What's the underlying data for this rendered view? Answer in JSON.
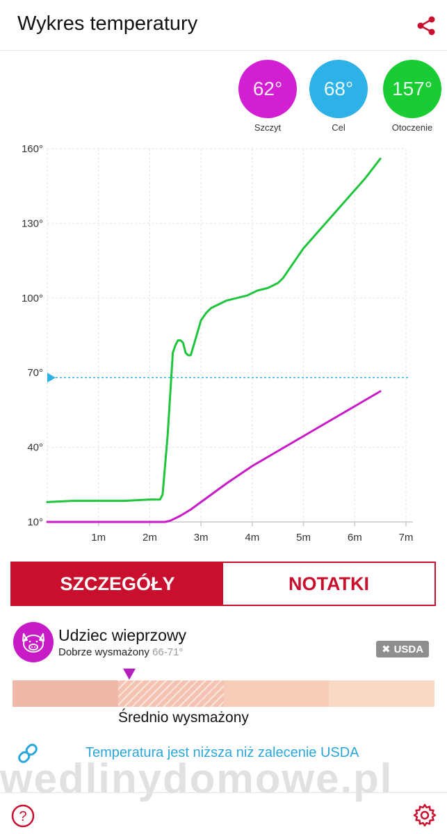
{
  "header": {
    "title": "Wykres temperatury",
    "share_icon": "share-icon"
  },
  "gauges": [
    {
      "value": "62°",
      "label": "Szczyt",
      "color": "#d21fd2"
    },
    {
      "value": "68°",
      "label": "Cel",
      "color": "#2db1e6"
    },
    {
      "value": "157°",
      "label": "Otoczenie",
      "color": "#19cc33"
    }
  ],
  "chart_data": {
    "type": "line",
    "x_unit": "minutes",
    "xlim": [
      0,
      7
    ],
    "ylim": [
      10,
      160
    ],
    "x_tick_labels": [
      "1m",
      "2m",
      "3m",
      "4m",
      "5m",
      "6m",
      "7m"
    ],
    "y_tick_labels": [
      "10°",
      "40°",
      "70°",
      "100°",
      "130°",
      "160°"
    ],
    "grid": true,
    "target_line": {
      "value": 68,
      "color": "#2db1e6"
    },
    "series": [
      {
        "color": "#1ec53c",
        "x": [
          0,
          0.5,
          1,
          1.5,
          2,
          2.2,
          2.25,
          2.35,
          2.45,
          2.5,
          2.55,
          2.6,
          2.65,
          2.7,
          2.75,
          2.8,
          2.9,
          3.0,
          3.1,
          3.2,
          3.4,
          3.5,
          3.7,
          3.9,
          4.1,
          4.3,
          4.5,
          4.6,
          4.8,
          5.0,
          5.3,
          5.6,
          5.9,
          6.2,
          6.5
        ],
        "y": [
          18,
          18.5,
          18.5,
          18.5,
          19,
          19,
          21,
          45,
          78,
          81,
          83,
          83,
          82,
          78,
          77,
          77,
          84,
          91,
          94,
          96,
          98,
          99,
          100,
          101,
          103,
          104,
          106,
          108,
          114,
          120,
          127,
          134,
          141,
          148,
          156
        ]
      },
      {
        "color": "#c81bc8",
        "x": [
          0,
          0.5,
          1,
          1.5,
          2,
          2.3,
          2.4,
          2.5,
          2.6,
          2.8,
          3.0,
          3.5,
          4.0,
          4.5,
          5.0,
          5.5,
          6.0,
          6.5
        ],
        "y": [
          10,
          10,
          10,
          10,
          10,
          10,
          10.5,
          11.5,
          12.5,
          15,
          18,
          25.5,
          32.5,
          38.5,
          44.5,
          50.5,
          56.5,
          62.5
        ]
      }
    ]
  },
  "tabs": [
    {
      "label": "SZCZEGÓŁY",
      "active": true
    },
    {
      "label": "NOTATKI",
      "active": false
    }
  ],
  "meat": {
    "icon": "pig-icon",
    "name": "Udziec wieprzowy",
    "doneness": "Dobrze wysmażony",
    "range": "66-71°",
    "usda_badge": "USDA"
  },
  "doneness_bar": {
    "segments": [
      "#f1b7a8",
      "#f3c2b0",
      "#f5cdb8",
      "#f7d9c4"
    ],
    "selected_segment": 1,
    "selected_label": "Średnio wysmażony"
  },
  "info": {
    "icon": "link-icon",
    "text": "Temperatura jest niższa niż zalecenie USDA"
  },
  "watermark": "wedlinydomowe.pl",
  "footer": {
    "help_icon": "help-icon",
    "settings_icon": "gear-icon"
  }
}
